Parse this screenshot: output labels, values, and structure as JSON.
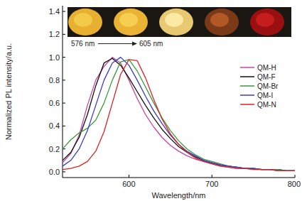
{
  "chart_data": {
    "type": "line",
    "x_label": "Wavelength/nm",
    "y_label": "Normalized PL intensity/a.u.",
    "annotations": [
      "576 nm",
      "605 nm"
    ],
    "x": [
      520,
      530,
      540,
      550,
      560,
      570,
      580,
      590,
      600,
      610,
      620,
      630,
      640,
      650,
      660,
      670,
      680,
      690,
      700,
      710,
      720,
      730,
      740,
      750,
      760,
      770,
      780,
      790,
      800
    ],
    "xlim": [
      520,
      800
    ],
    "xticks": [
      600,
      700,
      800
    ],
    "ylim": [
      -0.05,
      1.45
    ],
    "yticks": [
      {
        "value": 0,
        "label": "0.0"
      },
      0.2,
      0.4,
      0.6,
      0.8,
      {
        "value": 1,
        "label": "1.0"
      },
      1.2,
      1.4
    ],
    "legend": "right",
    "grid": false,
    "series": [
      {
        "name": "QM-H",
        "color": "#c8449f",
        "values": [
          0.08,
          0.16,
          0.32,
          0.58,
          0.8,
          0.92,
          1.0,
          0.95,
          0.8,
          0.64,
          0.5,
          0.39,
          0.3,
          0.23,
          0.18,
          0.14,
          0.11,
          0.09,
          0.07,
          0.05,
          0.04,
          0.03,
          0.03,
          0.02,
          0.02,
          0.02,
          0.01,
          0.01,
          0.01
        ]
      },
      {
        "name": "QM-F",
        "color": "#111111",
        "values": [
          0.1,
          0.17,
          0.3,
          0.5,
          0.75,
          0.95,
          0.99,
          0.93,
          0.82,
          0.7,
          0.58,
          0.47,
          0.37,
          0.29,
          0.22,
          0.17,
          0.13,
          0.1,
          0.08,
          0.06,
          0.05,
          0.04,
          0.03,
          0.03,
          0.02,
          0.02,
          0.02,
          0.01,
          0.01
        ]
      },
      {
        "name": "QM-Br",
        "color": "#3a9a3a",
        "values": [
          0.2,
          0.28,
          0.34,
          0.38,
          0.45,
          0.6,
          0.8,
          0.96,
          0.98,
          0.88,
          0.74,
          0.6,
          0.47,
          0.36,
          0.27,
          0.2,
          0.15,
          0.11,
          0.09,
          0.07,
          0.05,
          0.04,
          0.03,
          0.03,
          0.02,
          0.02,
          0.02,
          0.01,
          0.01
        ]
      },
      {
        "name": "QM-I",
        "color": "#3a3acc",
        "values": [
          0.05,
          0.1,
          0.2,
          0.36,
          0.58,
          0.8,
          0.95,
          1.0,
          0.93,
          0.8,
          0.66,
          0.53,
          0.42,
          0.32,
          0.24,
          0.18,
          0.14,
          0.1,
          0.08,
          0.06,
          0.05,
          0.04,
          0.03,
          0.03,
          0.02,
          0.02,
          0.01,
          0.01,
          0.01
        ]
      },
      {
        "name": "QM-N",
        "color": "#dd2222",
        "values": [
          0.02,
          0.03,
          0.05,
          0.09,
          0.18,
          0.35,
          0.6,
          0.85,
          0.98,
          0.97,
          0.82,
          0.63,
          0.46,
          0.33,
          0.24,
          0.17,
          0.12,
          0.09,
          0.07,
          0.05,
          0.04,
          0.03,
          0.03,
          0.02,
          0.02,
          0.02,
          0.01,
          0.01,
          0.01
        ]
      }
    ]
  }
}
